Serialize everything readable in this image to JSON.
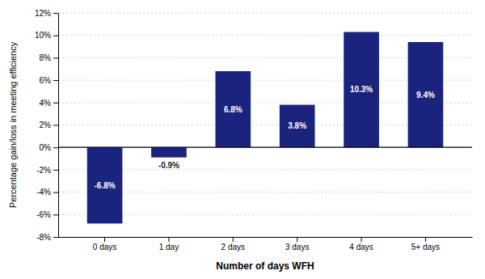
{
  "chart_data": {
    "type": "bar",
    "categories": [
      "0 days",
      "1 day",
      "2 days",
      "3 days",
      "4 days",
      "5+ days"
    ],
    "values": [
      -6.8,
      -0.9,
      6.8,
      3.8,
      10.3,
      9.4
    ],
    "value_labels": [
      "-6.8%",
      "-0.9%",
      "6.8%",
      "3.8%",
      "10.3%",
      "9.4%"
    ],
    "data_labels": true,
    "color": "#1a237e",
    "xlabel": "Number of days WFH",
    "ylabel": "Percentage gain/loss in meeting efficiency",
    "ylim": [
      -8,
      12
    ],
    "yticks": [
      {
        "value": -8,
        "label": "-8%"
      },
      {
        "value": -6,
        "label": "-6%"
      },
      {
        "value": -4,
        "label": "-4%"
      },
      {
        "value": -2,
        "label": "-2%"
      },
      {
        "value": 0,
        "label": "0%"
      },
      {
        "value": 2,
        "label": "2%"
      },
      {
        "value": 4,
        "label": "4%"
      },
      {
        "value": 6,
        "label": "6%"
      },
      {
        "value": 8,
        "label": "8%"
      },
      {
        "value": 10,
        "label": "10%"
      },
      {
        "value": 12,
        "label": "12%"
      }
    ],
    "grid": true
  }
}
